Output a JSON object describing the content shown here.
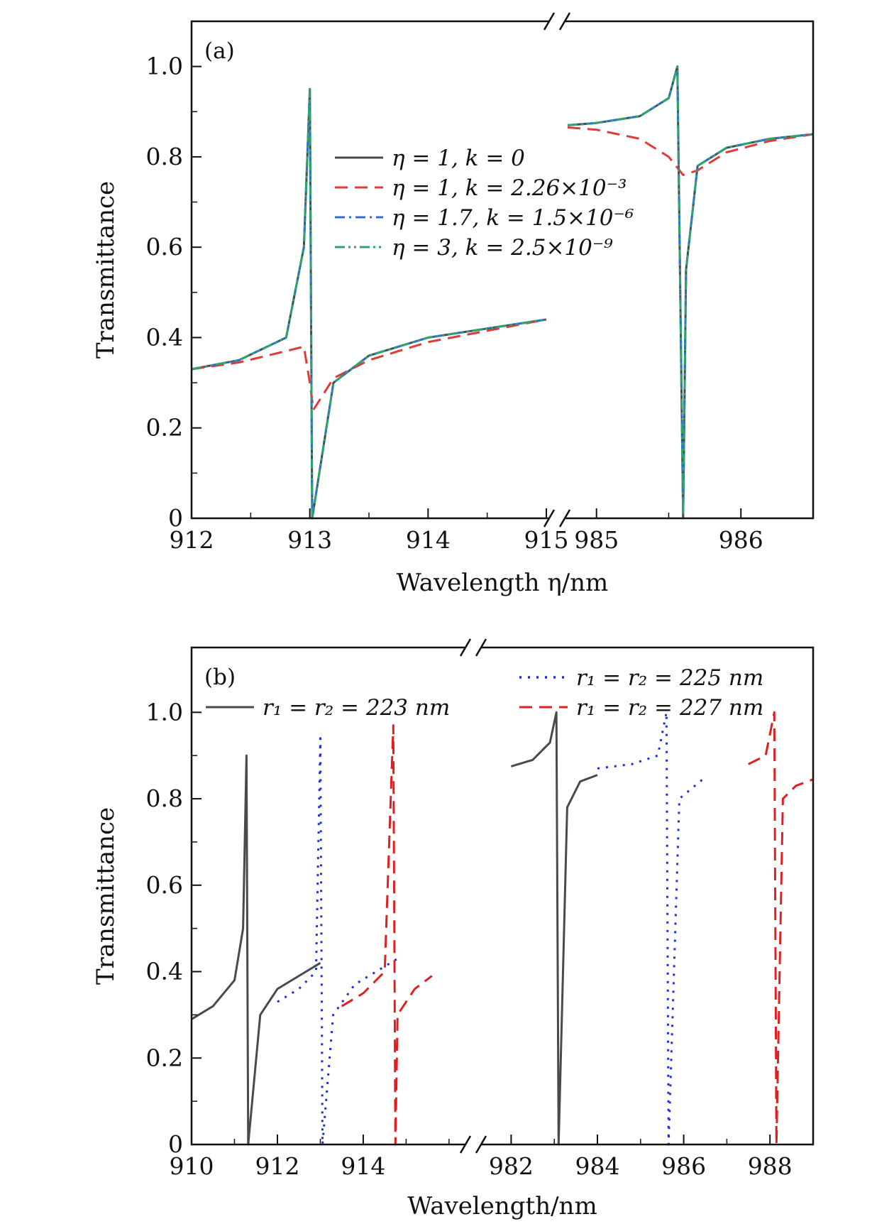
{
  "chart_data": [
    {
      "panel_label": "(a)",
      "type": "line",
      "xlabel": "Wavelength η/nm",
      "ylabel": "Transmittance",
      "ylim": [
        0,
        1.1
      ],
      "broken_x_axis": true,
      "x_segments": [
        {
          "xlim": [
            912,
            915
          ],
          "ticks": [
            912,
            913,
            914,
            915
          ],
          "tick_labels": [
            "912",
            "913",
            "914",
            "915"
          ]
        },
        {
          "xlim": [
            984.8,
            986.5
          ],
          "ticks": [
            985,
            986
          ],
          "tick_labels": [
            "985",
            "986"
          ]
        }
      ],
      "yticks": [
        0,
        0.2,
        0.4,
        0.6,
        0.8,
        1.0
      ],
      "ytick_labels": [
        "0",
        "0.2",
        "0.4",
        "0.6",
        "0.8",
        "1.0"
      ],
      "legend_position": "upper-center",
      "series": [
        {
          "name": "η = 1, k = 0",
          "color": "#4a4a4a",
          "style": "solid",
          "resonances": [
            {
              "segment": 0,
              "x": [
                912,
                912.4,
                912.8,
                912.95,
                913.0,
                913.02,
                913.2,
                913.5,
                914,
                914.5,
                915
              ],
              "y": [
                0.33,
                0.35,
                0.4,
                0.6,
                0.95,
                0.0,
                0.3,
                0.36,
                0.4,
                0.42,
                0.44
              ]
            },
            {
              "segment": 1,
              "x": [
                984.8,
                985.0,
                985.3,
                985.5,
                985.56,
                985.6,
                985.62,
                985.7,
                985.9,
                986.2,
                986.5
              ],
              "y": [
                0.87,
                0.875,
                0.89,
                0.93,
                1.0,
                0.0,
                0.55,
                0.78,
                0.82,
                0.84,
                0.85
              ]
            }
          ]
        },
        {
          "name": "η = 1, k = 2.26×10⁻³",
          "color": "#e03a3a",
          "style": "dashed",
          "resonances": [
            {
              "segment": 0,
              "x": [
                912,
                912.4,
                912.8,
                912.95,
                913.0,
                913.03,
                913.2,
                913.5,
                914,
                914.5,
                915
              ],
              "y": [
                0.33,
                0.345,
                0.37,
                0.38,
                0.3,
                0.24,
                0.31,
                0.35,
                0.39,
                0.415,
                0.44
              ]
            },
            {
              "segment": 1,
              "x": [
                984.8,
                985.0,
                985.3,
                985.5,
                985.6,
                985.7,
                985.9,
                986.2,
                986.5
              ],
              "y": [
                0.865,
                0.86,
                0.84,
                0.8,
                0.76,
                0.77,
                0.81,
                0.835,
                0.85
              ]
            }
          ]
        },
        {
          "name": "η = 1.7, k = 1.5×10⁻⁶",
          "color": "#2f6fd6",
          "style": "dash-dot",
          "resonances": [
            {
              "segment": 0,
              "x": [
                912,
                912.4,
                912.8,
                912.95,
                913.0,
                913.02,
                913.2,
                913.5,
                914,
                914.5,
                915
              ],
              "y": [
                0.33,
                0.35,
                0.4,
                0.6,
                0.95,
                0.0,
                0.3,
                0.36,
                0.4,
                0.42,
                0.44
              ]
            },
            {
              "segment": 1,
              "x": [
                984.8,
                985.0,
                985.3,
                985.5,
                985.56,
                985.6,
                985.62,
                985.7,
                985.9,
                986.2,
                986.5
              ],
              "y": [
                0.87,
                0.875,
                0.89,
                0.93,
                1.0,
                0.0,
                0.55,
                0.78,
                0.82,
                0.84,
                0.85
              ]
            }
          ]
        },
        {
          "name": "η = 3, k = 2.5×10⁻⁹",
          "color": "#2ea36a",
          "style": "dash-dot-dot",
          "resonances": [
            {
              "segment": 0,
              "x": [
                912,
                912.4,
                912.8,
                912.95,
                913.0,
                913.02,
                913.2,
                913.5,
                914,
                914.5,
                915
              ],
              "y": [
                0.33,
                0.35,
                0.4,
                0.6,
                0.95,
                0.0,
                0.3,
                0.36,
                0.4,
                0.42,
                0.44
              ]
            },
            {
              "segment": 1,
              "x": [
                984.8,
                985.0,
                985.3,
                985.5,
                985.56,
                985.6,
                985.62,
                985.7,
                985.9,
                986.2,
                986.5
              ],
              "y": [
                0.87,
                0.875,
                0.89,
                0.93,
                1.0,
                0.0,
                0.55,
                0.78,
                0.82,
                0.84,
                0.85
              ]
            }
          ]
        }
      ]
    },
    {
      "panel_label": "(b)",
      "type": "line",
      "xlabel": "Wavelength/nm",
      "ylabel": "Transmittance",
      "ylim": [
        0,
        1.15
      ],
      "broken_x_axis": true,
      "x_segments": [
        {
          "xlim": [
            910,
            916.2
          ],
          "ticks": [
            910,
            912,
            914
          ],
          "tick_labels": [
            "910",
            "912",
            "914"
          ]
        },
        {
          "xlim": [
            981.5,
            989
          ],
          "ticks": [
            982,
            984,
            986,
            988
          ],
          "tick_labels": [
            "982",
            "984",
            "986",
            "988"
          ]
        }
      ],
      "yticks": [
        0,
        0.2,
        0.4,
        0.6,
        0.8,
        1.0
      ],
      "ytick_labels": [
        "0",
        "0.2",
        "0.4",
        "0.6",
        "0.8",
        "1.0"
      ],
      "legend_position": "top",
      "series": [
        {
          "name": "r₁ = r₂ = 223 nm",
          "color": "#4a4a4a",
          "style": "solid",
          "resonances": [
            {
              "segment": 0,
              "x": [
                910,
                910.5,
                911,
                911.2,
                911.28,
                911.32,
                911.6,
                912,
                912.5,
                913
              ],
              "y": [
                0.29,
                0.32,
                0.38,
                0.5,
                0.9,
                0.0,
                0.3,
                0.36,
                0.39,
                0.42
              ]
            },
            {
              "segment": 1,
              "x": [
                982,
                982.5,
                982.9,
                983.05,
                983.1,
                983.3,
                983.6,
                984
              ],
              "y": [
                0.875,
                0.89,
                0.93,
                1.0,
                0.0,
                0.78,
                0.84,
                0.855
              ]
            }
          ]
        },
        {
          "name": "r₁ = r₂ = 225 nm",
          "color": "#1f2fd6",
          "style": "dotted",
          "resonances": [
            {
              "segment": 0,
              "x": [
                912,
                912.5,
                912.9,
                913.0,
                913.05,
                913.3,
                913.8,
                914.3,
                914.8
              ],
              "y": [
                0.33,
                0.36,
                0.4,
                0.94,
                0.0,
                0.3,
                0.37,
                0.4,
                0.43
              ]
            },
            {
              "segment": 1,
              "x": [
                984,
                984.8,
                985.4,
                985.6,
                985.65,
                985.9,
                986.5
              ],
              "y": [
                0.87,
                0.88,
                0.9,
                1.0,
                0.0,
                0.8,
                0.85
              ]
            }
          ]
        },
        {
          "name": "r₁ = r₂ = 227 nm",
          "color": "#e02020",
          "style": "dashed",
          "resonances": [
            {
              "segment": 0,
              "x": [
                913.5,
                914,
                914.5,
                914.7,
                914.75,
                914.8,
                915.2,
                915.6
              ],
              "y": [
                0.32,
                0.35,
                0.4,
                0.97,
                0.0,
                0.3,
                0.36,
                0.39
              ]
            },
            {
              "segment": 1,
              "x": [
                987.5,
                987.9,
                988.1,
                988.15,
                988.3,
                988.6,
                989
              ],
              "y": [
                0.88,
                0.9,
                1.0,
                0.0,
                0.8,
                0.83,
                0.845
              ]
            }
          ]
        }
      ]
    }
  ]
}
